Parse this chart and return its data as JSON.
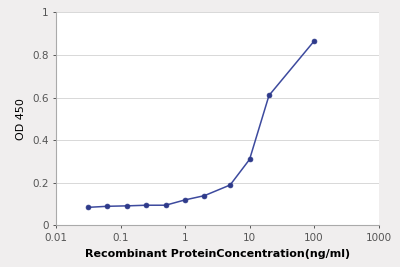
{
  "x": [
    0.0313,
    0.0625,
    0.125,
    0.25,
    0.5,
    1.0,
    2.0,
    5.0,
    10.0,
    20.0,
    100.0
  ],
  "y": [
    0.085,
    0.09,
    0.092,
    0.095,
    0.095,
    0.12,
    0.14,
    0.19,
    0.31,
    0.61,
    0.865
  ],
  "line_color": "#3d4a9e",
  "marker_color": "#2e3a8a",
  "marker_style": "o",
  "marker_size": 3.5,
  "line_width": 1.1,
  "xlim": [
    0.01,
    1000
  ],
  "ylim": [
    0,
    1.0
  ],
  "yticks": [
    0,
    0.2,
    0.4,
    0.6,
    0.8,
    1
  ],
  "xticks": [
    0.01,
    0.1,
    1,
    10,
    100,
    1000
  ],
  "xtick_labels": [
    "0.01",
    "0.1",
    "1",
    "10",
    "100",
    "1000"
  ],
  "xlabel": "Recombinant ProteinConcentration(ng/ml)",
  "ylabel": "OD 450",
  "xlabel_fontsize": 8,
  "ylabel_fontsize": 8,
  "tick_fontsize": 7.5,
  "fig_bg_color": "#f0eeee",
  "plot_bg_color": "#ffffff",
  "grid_color": "#d8d8d8",
  "grid_linewidth": 0.7,
  "spine_color": "#aaaaaa"
}
